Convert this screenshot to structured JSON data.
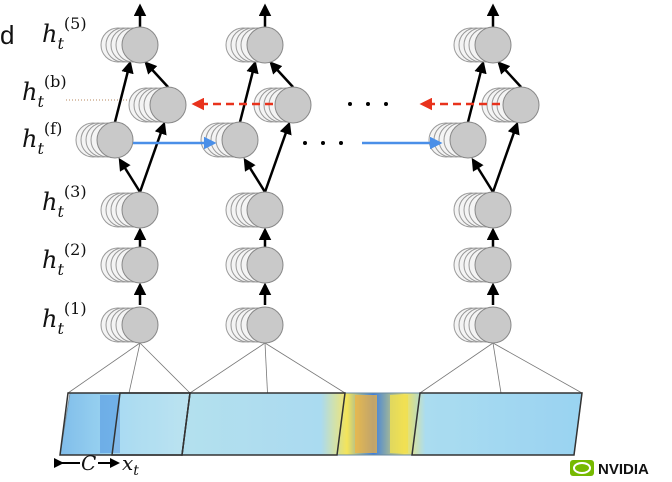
{
  "header_fragment": "d",
  "layers": [
    {
      "base": "h",
      "sub": "t",
      "sup": "(5)"
    },
    {
      "base": "h",
      "sub": "t",
      "sup": "(b)"
    },
    {
      "base": "h",
      "sub": "t",
      "sup": "(f)"
    },
    {
      "base": "h",
      "sub": "t",
      "sup": "(3)"
    },
    {
      "base": "h",
      "sub": "t",
      "sup": "(2)"
    },
    {
      "base": "h",
      "sub": "t",
      "sup": "(1)"
    }
  ],
  "input_labels": {
    "window": "C",
    "frame": {
      "base": "x",
      "sub": "t"
    }
  },
  "logo": "NVIDIA"
}
